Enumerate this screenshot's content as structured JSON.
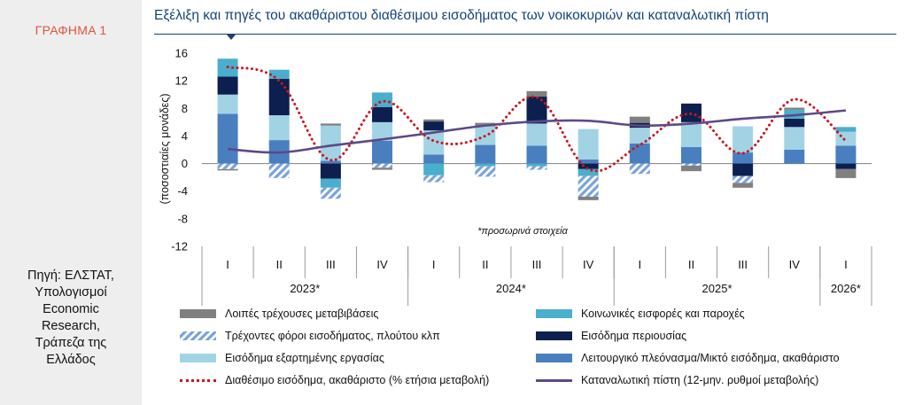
{
  "sidebar": {
    "figure_label": "ΓΡΑΦΗΜΑ 1",
    "source": "Πηγή: ΕΛΣΤΑΤ,\nΥπολογισμοί\nEconomic\nResearch,\nΤράπεζα της\nΕλλάδος"
  },
  "title": "Εξέλιξη και πηγές του ακαθάριστου διαθέσιμου εισοδήματος των νοικοκυριών και καταναλωτική πίστη",
  "chart_data": {
    "type": "bar",
    "subtype": "stacked bar with lines",
    "title": "Εξέλιξη και πηγές του ακαθάριστου διαθέσιμου εισοδήματος των νοικοκυριών και καταναλωτική πίστη",
    "ylabel": "(ποσοστιαίες μονάδες)",
    "ylim": [
      -12,
      16
    ],
    "yticks": [
      16,
      12,
      8,
      4,
      0,
      -4,
      -8,
      -12
    ],
    "categories": [
      "I",
      "II",
      "III",
      "IV",
      "I",
      "II",
      "III",
      "IV",
      "I",
      "II",
      "III",
      "IV",
      "I"
    ],
    "year_groups": [
      {
        "label": "2023*",
        "span": 4
      },
      {
        "label": "2024*",
        "span": 4
      },
      {
        "label": "2025*",
        "span": 4
      },
      {
        "label": "2026*",
        "span": 1
      }
    ],
    "annotation": "*προσωρινά στοιχεία",
    "grid": false,
    "series": [
      {
        "name": "Λειτουργικό πλεόνασμα/Μικτό εισόδημα, ακαθάριστο",
        "color": "#4a7fbf",
        "kind": "bar",
        "values": [
          7.2,
          3.4,
          0.4,
          3.3,
          1.3,
          2.7,
          2.6,
          0.6,
          2.9,
          2.4,
          1.6,
          2.0,
          2.6
        ]
      },
      {
        "name": "Εισόδημα εξαρτημένης εργασίας",
        "color": "#a2d3e5",
        "kind": "bar",
        "values": [
          2.8,
          3.6,
          5.1,
          2.7,
          3.5,
          2.7,
          3.2,
          4.4,
          2.3,
          3.6,
          3.8,
          3.3,
          2.0
        ]
      },
      {
        "name": "Εισόδημα περιουσίας",
        "color": "#0d1f4f",
        "kind": "bar",
        "values": [
          2.6,
          5.3,
          -2.2,
          2.2,
          1.3,
          0,
          3.9,
          -0.8,
          0.7,
          2.7,
          -1.8,
          1.2,
          -0.8
        ]
      },
      {
        "name": "Κοινωνικές εισφορές και παροχές",
        "color": "#4aaecd",
        "kind": "bar",
        "values": [
          2.6,
          1.3,
          -1.3,
          2.1,
          -1.7,
          -0.4,
          -0.4,
          -1.0,
          0,
          0,
          0,
          1.3,
          0.7
        ]
      },
      {
        "name": "Τρέχοντες φόροι εισοδήματος, πλούτου κλπ",
        "color": "#7aa3d9",
        "kind": "bar",
        "pattern": "hatch",
        "values": [
          -0.8,
          -2.1,
          -1.6,
          -0.6,
          -1.0,
          -1.5,
          -0.5,
          -3.0,
          -1.5,
          -0.3,
          -1.0,
          0,
          0
        ]
      },
      {
        "name": "Λοιπές τρέχουσες μεταβιβάσεις",
        "color": "#808080",
        "kind": "bar",
        "values": [
          -0.2,
          0,
          0.3,
          -0.3,
          0.3,
          0.5,
          0.8,
          -0.5,
          0.9,
          -0.8,
          -0.7,
          0.3,
          -1.3
        ]
      },
      {
        "name": "Διαθέσιμο εισόδημα, ακαθάριστο (% ετήσια μεταβολή)",
        "color": "#c8171e",
        "kind": "line",
        "style": "dotted",
        "values": [
          14.0,
          12.0,
          0.5,
          9.0,
          3.3,
          4.0,
          9.6,
          -0.8,
          2.7,
          7.2,
          1.5,
          9.3,
          3.3
        ]
      },
      {
        "name": "Καταναλωτική πίστη (12-μην. ρυθμοί μεταβολής)",
        "color": "#5c4a86",
        "kind": "line",
        "style": "solid",
        "values": [
          2.1,
          1.6,
          2.6,
          3.5,
          4.5,
          5.5,
          6.1,
          6.2,
          5.5,
          5.8,
          6.5,
          7.0,
          7.7
        ]
      }
    ]
  },
  "legend_order": [
    "Λοιπές τρέχουσες μεταβιβάσεις",
    "Κοινωνικές εισφορές και παροχές",
    "Τρέχοντες φόροι εισοδήματος, πλούτου κλπ",
    "Εισόδημα περιουσίας",
    "Εισόδημα εξαρτημένης εργασίας",
    "Λειτουργικό πλεόνασμα/Μικτό εισόδημα, ακαθάριστο",
    "Διαθέσιμο εισόδημα, ακαθάριστο (% ετήσια μεταβολή)",
    "Καταναλωτική πίστη (12-μην. ρυθμοί μεταβολής)"
  ]
}
